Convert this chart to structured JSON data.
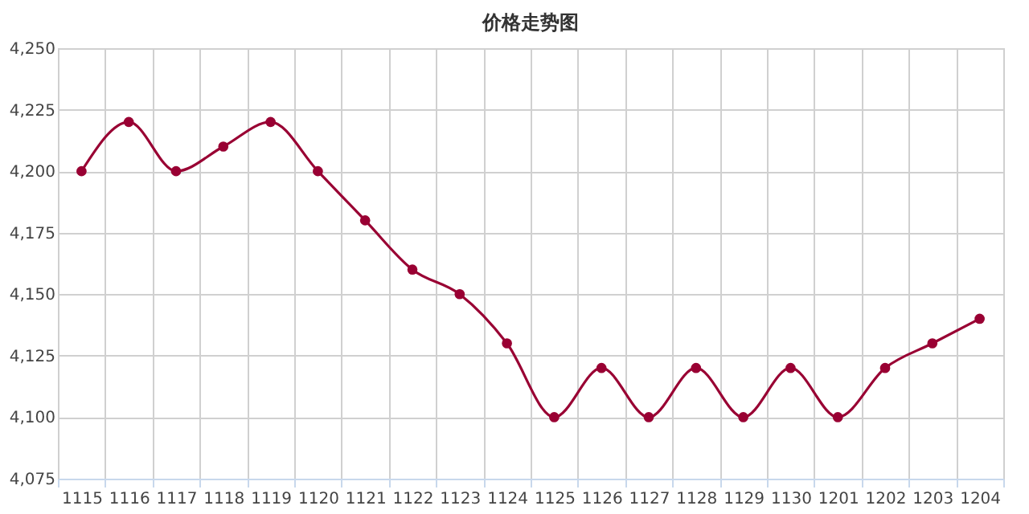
{
  "chart_data": {
    "type": "line",
    "title": "价格走势图",
    "categories": [
      "1115",
      "1116",
      "1117",
      "1118",
      "1119",
      "1120",
      "1121",
      "1122",
      "1123",
      "1124",
      "1125",
      "1126",
      "1127",
      "1128",
      "1129",
      "1130",
      "1201",
      "1202",
      "1203",
      "1204"
    ],
    "series": [
      {
        "color": "#990033",
        "values": [
          4200,
          4220,
          4200,
          4210,
          4220,
          4200,
          4180,
          4160,
          4150,
          4130,
          4100,
          4120,
          4100,
          4120,
          4100,
          4120,
          4100,
          4120,
          4130,
          4140
        ]
      }
    ],
    "ylim": [
      4075,
      4250
    ],
    "yticks": [
      {
        "value": 4075,
        "label": "4,075"
      },
      {
        "value": 4100,
        "label": "4,100"
      },
      {
        "value": 4125,
        "label": "4,125"
      },
      {
        "value": 4150,
        "label": "4,150"
      },
      {
        "value": 4175,
        "label": "4,175"
      },
      {
        "value": 4200,
        "label": "4,200"
      },
      {
        "value": 4225,
        "label": "4,225"
      },
      {
        "value": 4250,
        "label": "4,250"
      }
    ],
    "grid": true,
    "marker": "circle",
    "line_style": "solid"
  }
}
